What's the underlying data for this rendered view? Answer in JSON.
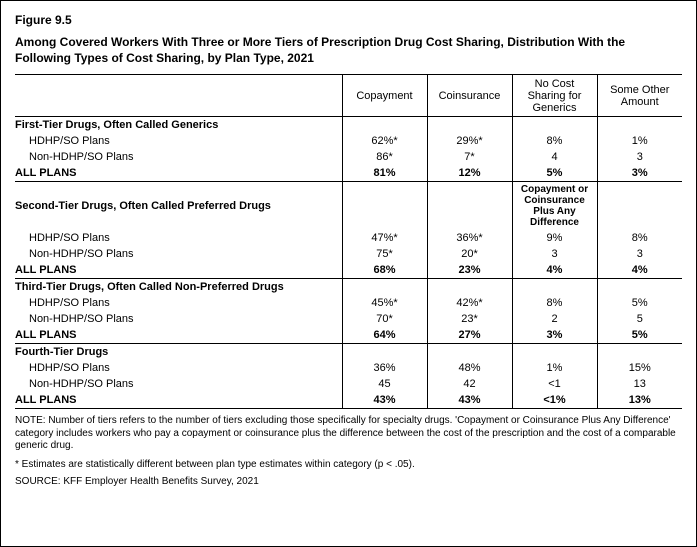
{
  "figure_num": "Figure 9.5",
  "figure_title": "Among Covered Workers With Three or More Tiers of Prescription Drug Cost Sharing, Distribution With the Following Types of Cost Sharing, by Plan Type, 2021",
  "columns": {
    "c1": "Copayment",
    "c2": "Coinsurance",
    "c3_tier1": "No Cost Sharing for Generics",
    "c3_other": "Copayment or Coinsurance Plus Any Difference",
    "c4": "Some Other Amount"
  },
  "sections": [
    {
      "header": "First-Tier Drugs, Often Called Generics",
      "col3_label": "c3_tier1",
      "rows": [
        {
          "label": "HDHP/SO Plans",
          "v": [
            "62%*",
            "29%*",
            "8%",
            "1%"
          ]
        },
        {
          "label": "Non-HDHP/SO Plans",
          "v": [
            "86*",
            "7*",
            "4",
            "3"
          ]
        }
      ],
      "all": {
        "label": "ALL PLANS",
        "v": [
          "81%",
          "12%",
          "5%",
          "3%"
        ]
      }
    },
    {
      "header": "Second-Tier Drugs, Often Called Preferred Drugs",
      "col3_label": "c3_other",
      "show_col3_header": true,
      "rows": [
        {
          "label": "HDHP/SO Plans",
          "v": [
            "47%*",
            "36%*",
            "9%",
            "8%"
          ]
        },
        {
          "label": "Non-HDHP/SO Plans",
          "v": [
            "75*",
            "20*",
            "3",
            "3"
          ]
        }
      ],
      "all": {
        "label": "ALL PLANS",
        "v": [
          "68%",
          "23%",
          "4%",
          "4%"
        ]
      }
    },
    {
      "header": "Third-Tier Drugs, Often Called Non-Preferred Drugs",
      "rows": [
        {
          "label": "HDHP/SO Plans",
          "v": [
            "45%*",
            "42%*",
            "8%",
            "5%"
          ]
        },
        {
          "label": "Non-HDHP/SO Plans",
          "v": [
            "70*",
            "23*",
            "2",
            "5"
          ]
        }
      ],
      "all": {
        "label": "ALL PLANS",
        "v": [
          "64%",
          "27%",
          "3%",
          "5%"
        ]
      }
    },
    {
      "header": "Fourth-Tier Drugs",
      "rows": [
        {
          "label": "HDHP/SO Plans",
          "v": [
            "36%",
            "48%",
            "1%",
            "15%"
          ]
        },
        {
          "label": "Non-HDHP/SO Plans",
          "v": [
            "45",
            "42",
            "<1",
            "13"
          ]
        }
      ],
      "all": {
        "label": "ALL PLANS",
        "v": [
          "43%",
          "43%",
          "<1%",
          "13%"
        ]
      },
      "last": true
    }
  ],
  "note": "NOTE: Number of tiers refers to the number of tiers excluding those specifically for specialty drugs. 'Copayment or Coinsurance Plus Any Difference' category includes workers who pay a copayment or coinsurance plus the difference between the cost of the prescription and the cost of a comparable generic drug.",
  "sig": " * Estimates are statistically different between plan type estimates within category (p < .05).",
  "source": "SOURCE: KFF Employer Health Benefits Survey, 2021"
}
